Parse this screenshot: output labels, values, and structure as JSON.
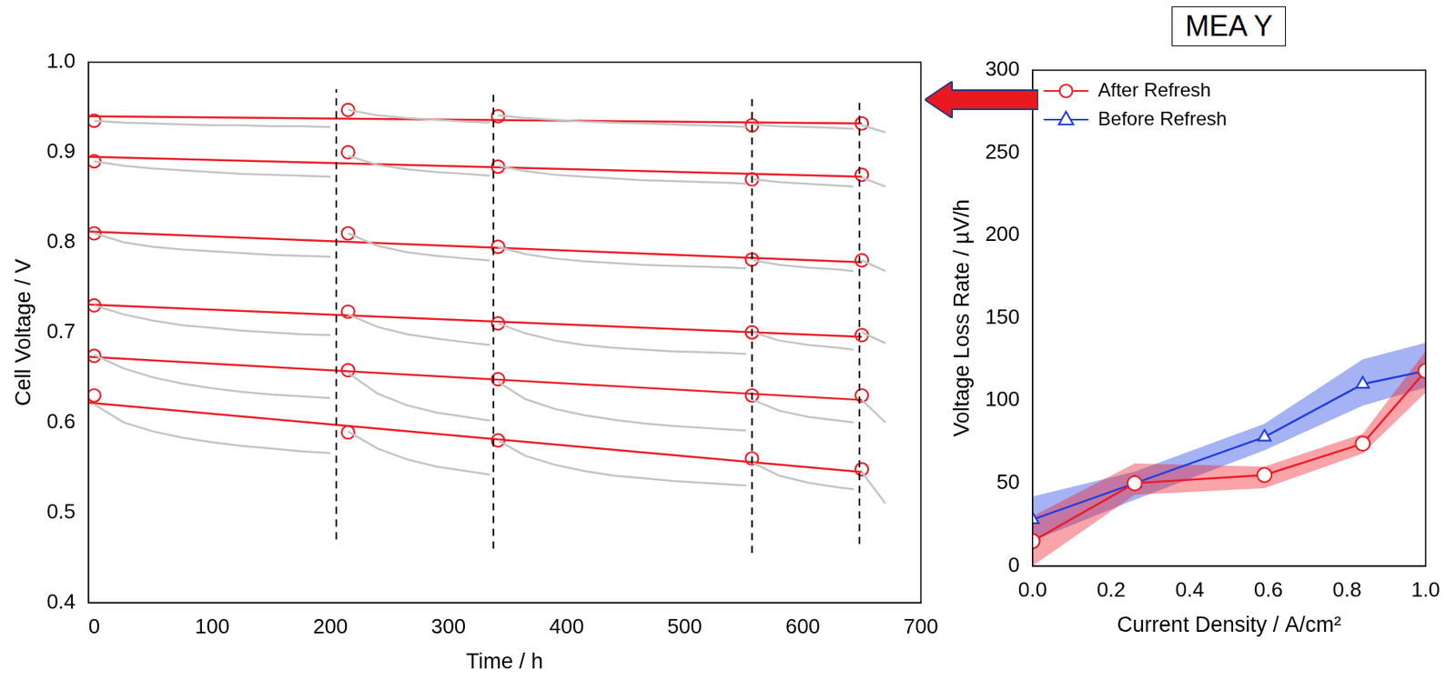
{
  "chart_data": [
    {
      "type": "line",
      "x_label": "Time / h",
      "y_label": "Cell Voltage / V",
      "xlim": [
        -5,
        700
      ],
      "xticks": [
        0,
        100,
        200,
        300,
        400,
        500,
        600,
        700
      ],
      "ylim": [
        0.4,
        1.0
      ],
      "yticks": [
        0.4,
        0.5,
        0.6,
        0.7,
        0.8,
        0.9,
        {
          "value": 1.0,
          "label": "1.0"
        }
      ],
      "grid": false,
      "series": [
        {
          "color": "#c4c4c4",
          "line_style": "solid",
          "marker": "none",
          "x": [
            0,
            25,
            50,
            75,
            100,
            125,
            150,
            175,
            200,
            208,
            215,
            240,
            265,
            290,
            315,
            335,
            338,
            342,
            365,
            390,
            415,
            440,
            465,
            490,
            515,
            540,
            552,
            555,
            558,
            580,
            605,
            630,
            643,
            646,
            650,
            670
          ],
          "values": [
            0.935,
            0.933,
            0.932,
            0.931,
            0.93,
            0.93,
            0.929,
            0.929,
            0.928,
            null,
            0.947,
            0.941,
            0.938,
            0.936,
            0.934,
            0.933,
            null,
            0.941,
            0.938,
            0.936,
            0.934,
            0.933,
            0.932,
            0.931,
            0.93,
            0.929,
            0.928,
            null,
            0.931,
            0.929,
            0.928,
            0.927,
            0.926,
            null,
            0.93,
            0.922
          ]
        },
        {
          "color": "#c4c4c4",
          "line_style": "solid",
          "marker": "none",
          "x": [
            0,
            25,
            50,
            75,
            100,
            125,
            150,
            175,
            200,
            208,
            215,
            240,
            265,
            290,
            315,
            335,
            338,
            342,
            365,
            390,
            415,
            440,
            465,
            490,
            515,
            540,
            552,
            555,
            558,
            580,
            605,
            630,
            643,
            646,
            650,
            670
          ],
          "values": [
            0.89,
            0.885,
            0.882,
            0.88,
            0.878,
            0.876,
            0.875,
            0.874,
            0.873,
            null,
            0.896,
            0.886,
            0.881,
            0.878,
            0.876,
            0.874,
            null,
            0.885,
            0.879,
            0.875,
            0.873,
            0.871,
            0.869,
            0.868,
            0.867,
            0.866,
            0.865,
            null,
            0.87,
            0.867,
            0.865,
            0.863,
            0.862,
            null,
            0.872,
            0.862
          ]
        },
        {
          "color": "#c4c4c4",
          "line_style": "solid",
          "marker": "none",
          "x": [
            0,
            25,
            50,
            75,
            100,
            125,
            150,
            175,
            200,
            208,
            215,
            240,
            265,
            290,
            315,
            335,
            338,
            342,
            365,
            390,
            415,
            440,
            465,
            490,
            515,
            540,
            552,
            555,
            558,
            580,
            605,
            630,
            643,
            646,
            650,
            670
          ],
          "values": [
            0.81,
            0.8,
            0.795,
            0.792,
            0.79,
            0.788,
            0.786,
            0.785,
            0.784,
            null,
            0.81,
            0.796,
            0.789,
            0.785,
            0.782,
            0.78,
            null,
            0.795,
            0.787,
            0.782,
            0.779,
            0.777,
            0.775,
            0.774,
            0.773,
            0.772,
            0.771,
            null,
            0.78,
            0.775,
            0.772,
            0.77,
            0.768,
            null,
            0.78,
            0.768
          ]
        },
        {
          "color": "#c4c4c4",
          "line_style": "solid",
          "marker": "none",
          "x": [
            0,
            25,
            50,
            75,
            100,
            125,
            150,
            175,
            200,
            208,
            215,
            240,
            265,
            290,
            315,
            335,
            338,
            342,
            365,
            390,
            415,
            440,
            465,
            490,
            515,
            540,
            552,
            555,
            558,
            580,
            605,
            630,
            643,
            646,
            650,
            670
          ],
          "values": [
            0.73,
            0.72,
            0.713,
            0.708,
            0.705,
            0.702,
            0.7,
            0.698,
            0.697,
            null,
            0.72,
            0.706,
            0.698,
            0.693,
            0.689,
            0.686,
            null,
            0.71,
            0.699,
            0.691,
            0.686,
            0.683,
            0.681,
            0.679,
            0.678,
            0.677,
            0.676,
            null,
            0.7,
            0.691,
            0.686,
            0.683,
            0.681,
            null,
            0.7,
            0.688
          ]
        },
        {
          "color": "#c4c4c4",
          "line_style": "solid",
          "marker": "none",
          "x": [
            0,
            25,
            50,
            75,
            100,
            125,
            150,
            175,
            200,
            208,
            215,
            240,
            265,
            290,
            315,
            335,
            338,
            342,
            365,
            390,
            415,
            440,
            465,
            490,
            515,
            540,
            552,
            555,
            558,
            580,
            605,
            630,
            643,
            646,
            650,
            670
          ],
          "values": [
            0.675,
            0.66,
            0.65,
            0.643,
            0.638,
            0.634,
            0.631,
            0.629,
            0.627,
            null,
            0.655,
            0.632,
            0.619,
            0.611,
            0.606,
            0.602,
            null,
            0.645,
            0.626,
            0.615,
            0.608,
            0.603,
            0.599,
            0.596,
            0.594,
            0.592,
            0.591,
            null,
            0.625,
            0.613,
            0.606,
            0.602,
            0.6,
            null,
            0.625,
            0.6
          ]
        },
        {
          "color": "#c4c4c4",
          "line_style": "solid",
          "marker": "none",
          "x": [
            0,
            25,
            50,
            75,
            100,
            125,
            150,
            175,
            200,
            208,
            215,
            240,
            265,
            290,
            315,
            335,
            338,
            342,
            365,
            390,
            415,
            440,
            465,
            490,
            515,
            540,
            552,
            555,
            558,
            580,
            605,
            630,
            643,
            646,
            650,
            670
          ],
          "values": [
            0.62,
            0.6,
            0.59,
            0.583,
            0.578,
            0.574,
            0.571,
            0.568,
            0.566,
            null,
            0.59,
            0.571,
            0.559,
            0.551,
            0.546,
            0.542,
            null,
            0.58,
            0.563,
            0.553,
            0.546,
            0.541,
            0.538,
            0.535,
            0.533,
            0.531,
            0.53,
            null,
            0.555,
            0.541,
            0.533,
            0.528,
            0.526,
            null,
            0.545,
            0.51
          ]
        },
        {
          "color": "#000000",
          "line_style": "dashed",
          "marker": "none",
          "x": [
            205,
            205
          ],
          "values": [
            0.47,
            0.97
          ]
        },
        {
          "color": "#000000",
          "line_style": "dashed",
          "marker": "none",
          "x": [
            338,
            338
          ],
          "values": [
            0.46,
            0.97
          ]
        },
        {
          "color": "#000000",
          "line_style": "dashed",
          "marker": "none",
          "x": [
            557,
            557
          ],
          "values": [
            0.455,
            0.96
          ]
        },
        {
          "color": "#000000",
          "line_style": "dashed",
          "marker": "none",
          "x": [
            648,
            648
          ],
          "values": [
            0.465,
            0.96
          ]
        },
        {
          "color": "#ee1c25",
          "line_style": "solid",
          "marker": "none",
          "x": [
            -5,
            650
          ],
          "values": [
            0.94,
            0.932
          ]
        },
        {
          "color": "#ee1c25",
          "line_style": "solid",
          "marker": "none",
          "x": [
            -5,
            650
          ],
          "values": [
            0.895,
            0.873
          ]
        },
        {
          "color": "#ee1c25",
          "line_style": "solid",
          "marker": "none",
          "x": [
            -5,
            650
          ],
          "values": [
            0.812,
            0.778
          ]
        },
        {
          "color": "#ee1c25",
          "line_style": "solid",
          "marker": "none",
          "x": [
            -5,
            650
          ],
          "values": [
            0.731,
            0.695
          ]
        },
        {
          "color": "#ee1c25",
          "line_style": "solid",
          "marker": "none",
          "x": [
            -5,
            650
          ],
          "values": [
            0.673,
            0.625
          ]
        },
        {
          "color": "#ee1c25",
          "line_style": "solid",
          "marker": "none",
          "x": [
            -5,
            650
          ],
          "values": [
            0.622,
            0.545
          ]
        },
        {
          "color": "#ee1c25",
          "line_style": "none",
          "marker": "circle",
          "x": [
            0,
            215,
            342,
            557,
            650
          ],
          "values": [
            0.935,
            0.947,
            0.94,
            0.93,
            0.932
          ]
        },
        {
          "color": "#ee1c25",
          "line_style": "none",
          "marker": "circle",
          "x": [
            0,
            215,
            342,
            557,
            650
          ],
          "values": [
            0.89,
            0.9,
            0.884,
            0.87,
            0.875
          ]
        },
        {
          "color": "#ee1c25",
          "line_style": "none",
          "marker": "circle",
          "x": [
            0,
            215,
            342,
            557,
            650
          ],
          "values": [
            0.81,
            0.81,
            0.795,
            0.781,
            0.78
          ]
        },
        {
          "color": "#ee1c25",
          "line_style": "none",
          "marker": "circle",
          "x": [
            0,
            215,
            342,
            557,
            650
          ],
          "values": [
            0.73,
            0.723,
            0.71,
            0.7,
            0.697
          ]
        },
        {
          "color": "#ee1c25",
          "line_style": "none",
          "marker": "circle",
          "x": [
            0,
            215,
            342,
            557,
            650
          ],
          "values": [
            0.674,
            0.658,
            0.648,
            0.63,
            0.63
          ]
        },
        {
          "color": "#ee1c25",
          "line_style": "none",
          "marker": "circle",
          "x": [
            0,
            215,
            342,
            557,
            650
          ],
          "values": [
            0.63,
            0.589,
            0.58,
            0.56,
            0.548
          ]
        }
      ]
    },
    {
      "type": "line",
      "title": "MEA Y",
      "x_label": "Current Density / A/cm²",
      "y_label": "Voltage Loss Rate / µV/h",
      "xlim": [
        0,
        1
      ],
      "xticks": [
        {
          "value": 0,
          "label": "0.0"
        },
        0.2,
        0.4,
        0.6,
        0.8,
        {
          "value": 1,
          "label": "1.0"
        }
      ],
      "ylim": [
        0,
        300
      ],
      "yticks": [
        0,
        50,
        100,
        150,
        200,
        250,
        300
      ],
      "grid": false,
      "legend": "upper left",
      "series": [
        {
          "name": "After Refresh",
          "color": "#ee1c25",
          "marker": "circle",
          "line_style": "solid",
          "x": [
            0.0,
            0.26,
            0.59,
            0.84,
            1.0
          ],
          "values": [
            15,
            50,
            55,
            74,
            118
          ],
          "low": [
            0,
            43,
            47,
            68,
            105
          ],
          "high": [
            30,
            62,
            60,
            80,
            130
          ]
        },
        {
          "name": "Before Refresh",
          "color": "#1f3fe0",
          "marker": "triangle",
          "line_style": "solid",
          "x": [
            0.0,
            0.26,
            0.59,
            0.84,
            1.0
          ],
          "values": [
            28,
            50,
            78,
            110,
            118
          ],
          "low": [
            15,
            40,
            70,
            97,
            108
          ],
          "high": [
            42,
            57,
            86,
            125,
            135
          ]
        }
      ]
    }
  ]
}
